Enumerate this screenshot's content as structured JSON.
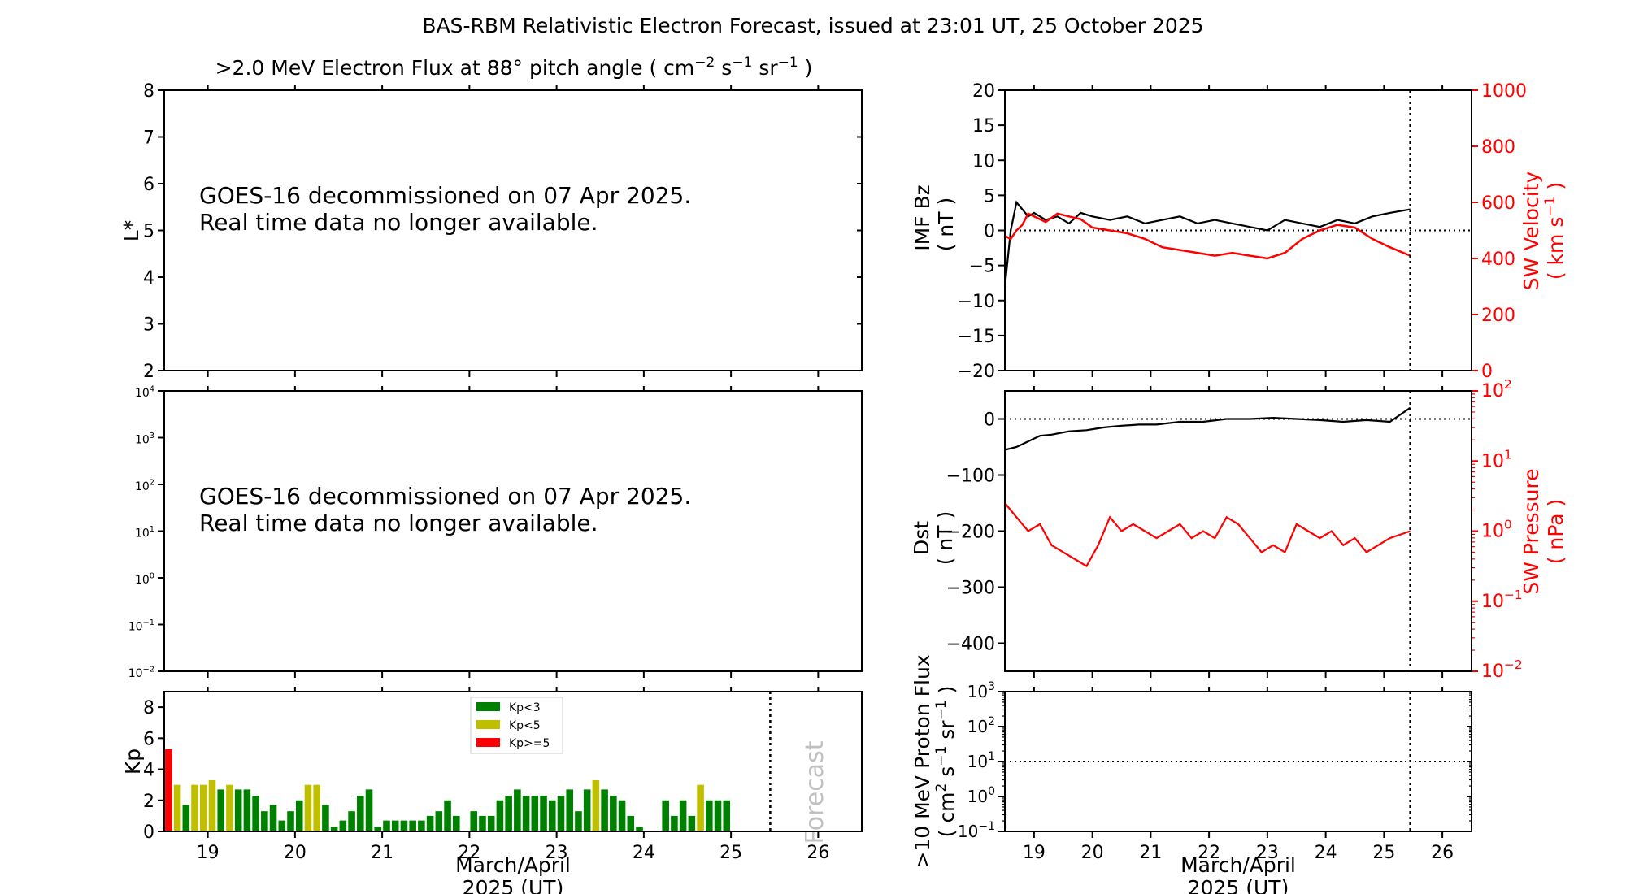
{
  "figure": {
    "title": "BAS-RBM Relativistic Electron Forecast, issued at 23:01 UT, 25 October 2025",
    "xlabel_line1": "March/April",
    "xlabel_line2": "2025 (UT)"
  },
  "notice": {
    "line1": "GOES-16 decommissioned on 07 Apr 2025.",
    "line2": "Real time data no longer available."
  },
  "chart_data": [
    {
      "id": "lstar",
      "type": "heatmap",
      "title": ">2.0 MeV Electron Flux at 88° pitch angle",
      "units_main": "( cm",
      "units_sup1": "−2",
      "units_s": " s",
      "units_sup2": "−1",
      "units_sr": " sr",
      "units_sup3": "−1",
      "units_close": " )",
      "ylabel": "L*",
      "ylim": [
        2,
        8
      ],
      "yticks": [
        "2",
        "3",
        "4",
        "5",
        "6",
        "7",
        "8"
      ],
      "xlim": [
        18.5,
        26.5
      ]
    },
    {
      "id": "flux",
      "type": "line",
      "yscale": "log",
      "ylim": [
        -2,
        4
      ],
      "ytick_exps": [
        "−2",
        "−1",
        "0",
        "1",
        "2",
        "3",
        "4"
      ],
      "xlim": [
        18.5,
        26.5
      ]
    },
    {
      "id": "kp",
      "type": "bar",
      "ylabel": "Kp",
      "ylim": [
        0,
        9
      ],
      "yticks": [
        "0",
        "2",
        "4",
        "6",
        "8"
      ],
      "xlim": [
        18.5,
        26.5
      ],
      "xticks": [
        "19",
        "20",
        "21",
        "22",
        "23",
        "24",
        "25",
        "26"
      ],
      "bar_width": 0.1,
      "forecast_at": 25.45,
      "forecast_label": "Forecast",
      "legend": [
        {
          "label": "Kp<3",
          "color": "#008000"
        },
        {
          "label": "Kp<5",
          "color": "#bfbf00"
        },
        {
          "label": "Kp>=5",
          "color": "#ff0000"
        }
      ],
      "values": [
        5.3,
        3.0,
        1.7,
        3.0,
        3.0,
        3.3,
        2.7,
        3.0,
        2.7,
        2.7,
        2.3,
        1.3,
        1.7,
        0.7,
        1.3,
        2.0,
        3.0,
        3.0,
        1.7,
        0.3,
        0.7,
        1.3,
        2.3,
        2.7,
        0.3,
        0.7,
        0.7,
        0.7,
        0.7,
        0.7,
        1.0,
        1.3,
        2.0,
        1.0,
        0.0,
        1.3,
        1.0,
        1.0,
        2.0,
        2.3,
        2.7,
        2.3,
        2.3,
        2.3,
        2.0,
        2.3,
        2.7,
        1.3,
        2.7,
        3.3,
        2.7,
        2.3,
        2.0,
        1.0,
        0.3,
        0.0,
        0.0,
        2.0,
        1.0,
        2.0,
        1.0,
        3.0,
        2.0,
        2.0,
        2.0
      ],
      "colors": [
        "r",
        "y",
        "g",
        "y",
        "y",
        "y",
        "g",
        "y",
        "g",
        "g",
        "g",
        "g",
        "g",
        "g",
        "g",
        "g",
        "y",
        "y",
        "g",
        "g",
        "g",
        "g",
        "g",
        "g",
        "g",
        "g",
        "g",
        "g",
        "g",
        "g",
        "g",
        "g",
        "g",
        "g",
        "g",
        "g",
        "g",
        "g",
        "g",
        "g",
        "g",
        "g",
        "g",
        "g",
        "g",
        "g",
        "g",
        "g",
        "g",
        "y",
        "g",
        "g",
        "g",
        "g",
        "g",
        "g",
        "g",
        "g",
        "g",
        "g",
        "g",
        "y",
        "g",
        "g",
        "g"
      ]
    },
    {
      "id": "imf",
      "type": "line",
      "ylabel_line1": "IMF Bz",
      "ylabel_line2": "( nT )",
      "ylim": [
        -20,
        20
      ],
      "yticks": [
        "−20",
        "−15",
        "−10",
        "−5",
        "0",
        "5",
        "10",
        "15",
        "20"
      ],
      "y2label_line1": "SW Velocity",
      "y2label_units": "( km s",
      "y2label_sup": "−1",
      "y2label_close": " )",
      "y2lim": [
        0,
        1000
      ],
      "y2ticks": [
        "0",
        "200",
        "400",
        "600",
        "800",
        "1000"
      ],
      "y2color": "#ff0000",
      "xlim": [
        18.5,
        26.5
      ],
      "now": 25.45,
      "series": [
        {
          "name": "IMF Bz",
          "color": "#000000",
          "x": [
            18.5,
            18.6,
            18.7,
            18.8,
            18.9,
            19.0,
            19.2,
            19.4,
            19.6,
            19.8,
            20.0,
            20.3,
            20.6,
            20.9,
            21.2,
            21.5,
            21.8,
            22.1,
            22.4,
            22.7,
            23.0,
            23.3,
            23.6,
            23.9,
            24.2,
            24.5,
            24.8,
            25.1,
            25.45
          ],
          "y": [
            -8,
            0,
            4,
            3,
            2,
            2.5,
            1.5,
            2,
            1,
            2.5,
            2,
            1.5,
            2,
            1,
            1.5,
            2,
            1,
            1.5,
            1,
            0.5,
            0,
            1.5,
            1,
            0.5,
            1.5,
            1,
            2,
            2.5,
            3
          ]
        },
        {
          "name": "SW Velocity",
          "color": "#ff0000",
          "x": [
            18.5,
            18.6,
            18.7,
            18.8,
            18.9,
            19.0,
            19.2,
            19.4,
            19.6,
            19.8,
            20.0,
            20.3,
            20.6,
            20.9,
            21.2,
            21.5,
            21.8,
            22.1,
            22.4,
            22.7,
            23.0,
            23.3,
            23.6,
            23.9,
            24.2,
            24.5,
            24.8,
            25.1,
            25.45
          ],
          "y": [
            480,
            470,
            500,
            520,
            560,
            550,
            530,
            560,
            550,
            540,
            510,
            500,
            490,
            470,
            440,
            430,
            420,
            410,
            420,
            410,
            400,
            420,
            470,
            500,
            520,
            510,
            470,
            440,
            410
          ]
        }
      ]
    },
    {
      "id": "dst",
      "type": "line",
      "ylabel_line1": "Dst",
      "ylabel_line2": "( nT )",
      "ylim": [
        -450,
        50
      ],
      "yticks": [
        "−400",
        "−300",
        "−200",
        "−100",
        "0"
      ],
      "y2label_line1": "SW Pressure",
      "y2label_line2": "( nPa )",
      "y2lim": [
        -2,
        2
      ],
      "y2tick_exps": [
        "−2",
        "−1",
        "0",
        "1",
        "2"
      ],
      "y2color": "#ff0000",
      "xlim": [
        18.5,
        26.5
      ],
      "now": 25.45,
      "series": [
        {
          "name": "Dst",
          "color": "#000000",
          "x": [
            18.5,
            18.7,
            18.9,
            19.1,
            19.3,
            19.6,
            19.9,
            20.2,
            20.5,
            20.8,
            21.1,
            21.5,
            21.9,
            22.3,
            22.7,
            23.1,
            23.5,
            23.9,
            24.3,
            24.7,
            25.1,
            25.45
          ],
          "y": [
            -55,
            -50,
            -40,
            -30,
            -28,
            -22,
            -20,
            -15,
            -12,
            -10,
            -10,
            -5,
            -5,
            0,
            0,
            2,
            0,
            -2,
            -5,
            -2,
            -5,
            20
          ]
        },
        {
          "name": "SW Pressure",
          "color": "#ff0000",
          "x": [
            18.5,
            18.7,
            18.9,
            19.1,
            19.3,
            19.5,
            19.7,
            19.9,
            20.1,
            20.3,
            20.5,
            20.7,
            20.9,
            21.1,
            21.3,
            21.5,
            21.7,
            21.9,
            22.1,
            22.3,
            22.5,
            22.7,
            22.9,
            23.1,
            23.3,
            23.5,
            23.7,
            23.9,
            24.1,
            24.3,
            24.5,
            24.7,
            24.9,
            25.1,
            25.45
          ],
          "y": [
            0.4,
            0.2,
            0.0,
            0.1,
            -0.2,
            -0.3,
            -0.4,
            -0.5,
            -0.2,
            0.2,
            0.0,
            0.1,
            0.0,
            -0.1,
            0.0,
            0.1,
            -0.1,
            0.0,
            -0.1,
            0.2,
            0.1,
            -0.1,
            -0.3,
            -0.2,
            -0.3,
            0.1,
            0.0,
            -0.1,
            0.0,
            -0.2,
            -0.1,
            -0.3,
            -0.2,
            -0.1,
            0.0
          ]
        }
      ]
    },
    {
      "id": "proton",
      "type": "line",
      "yscale": "log",
      "ylabel_line1": ">10 MeV Proton Flux",
      "ylabel_units": "( cm",
      "ylabel_sup1": "2",
      "ylabel_s": " s",
      "ylabel_sup2": "−1",
      "ylabel_sr": " sr",
      "ylabel_sup3": "−1",
      "ylabel_close": " )",
      "ylim": [
        -1,
        3
      ],
      "ytick_exps": [
        "−1",
        "0",
        "1",
        "2",
        "3"
      ],
      "threshold_exp": 1,
      "xlim": [
        18.5,
        26.5
      ],
      "xticks": [
        "19",
        "20",
        "21",
        "22",
        "23",
        "24",
        "25",
        "26"
      ],
      "now": 25.45
    }
  ]
}
